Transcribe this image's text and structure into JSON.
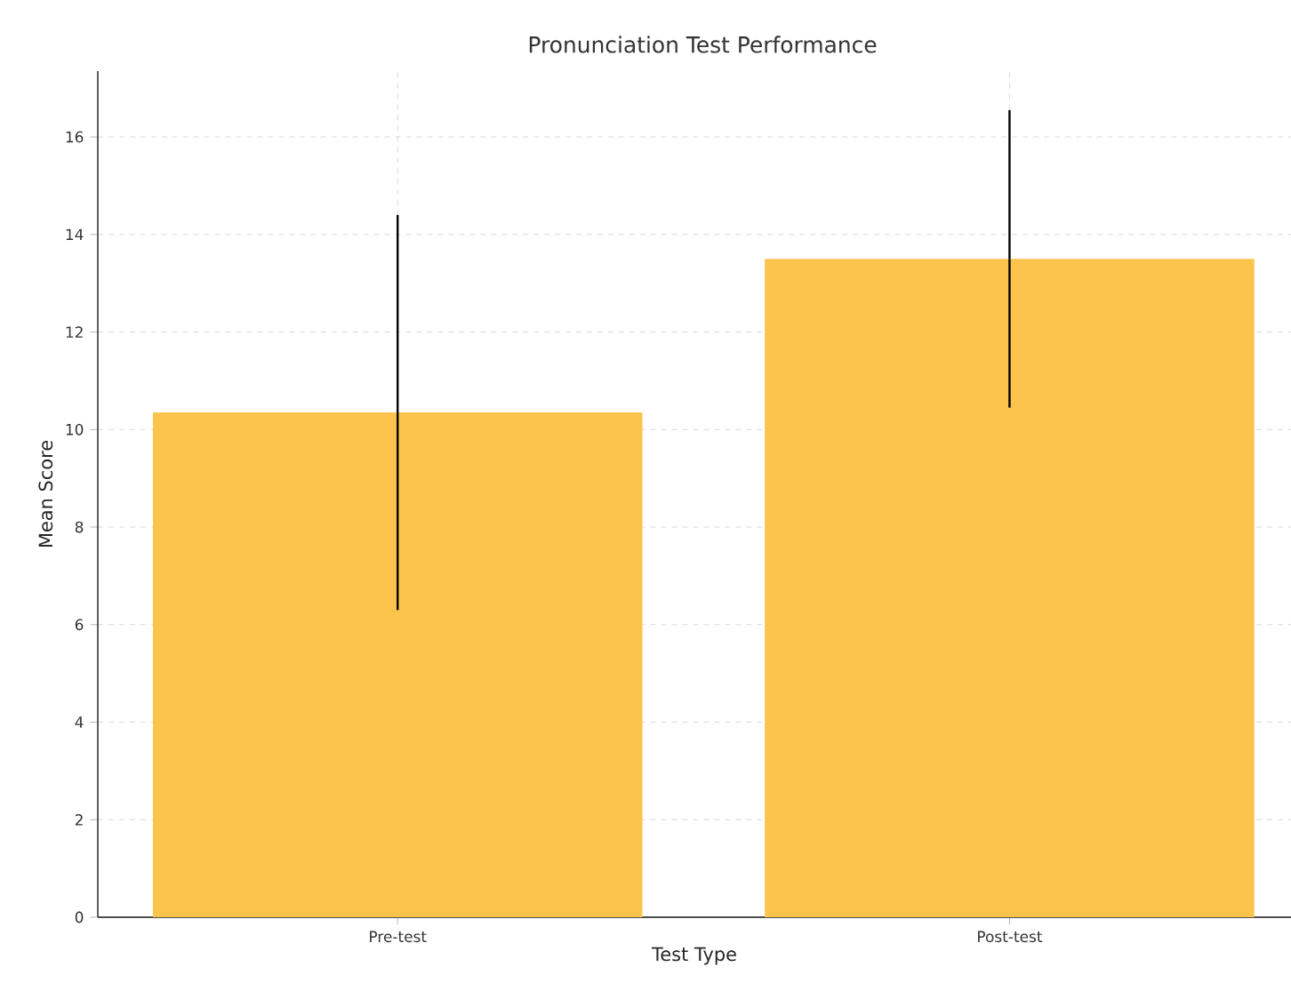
{
  "chart_data": {
    "type": "bar",
    "title": "Pronunciation Test Performance",
    "xlabel": "Test Type",
    "ylabel": "Mean Score",
    "categories": [
      "Pre-test",
      "Post-test"
    ],
    "values": [
      10.35,
      13.5
    ],
    "errors": [
      4.05,
      3.05
    ],
    "color": "#fcc44c",
    "ylim": [
      0,
      17.35
    ],
    "yticks": [
      0,
      2,
      4,
      6,
      8,
      10,
      12,
      14,
      16
    ],
    "grid": true
  }
}
